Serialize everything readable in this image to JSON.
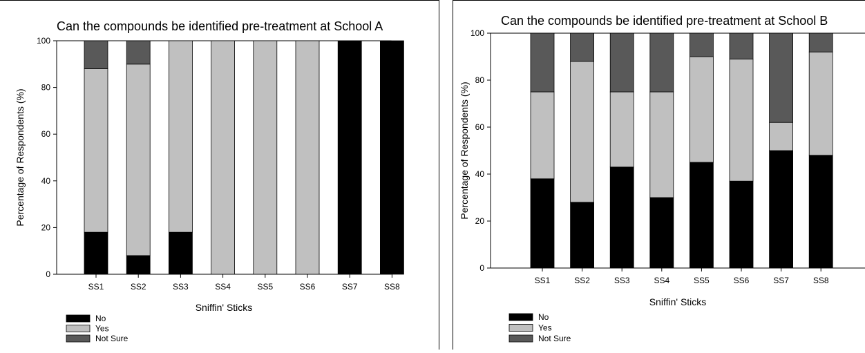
{
  "chart_data": [
    {
      "type": "bar",
      "stacked": true,
      "title": "Can the compounds be identified pre-treatment at School A",
      "xlabel": "Sniffin' Sticks",
      "ylabel": "Percentage of Respondents (%)",
      "ylim": [
        0,
        100
      ],
      "yticks": [
        0,
        20,
        40,
        60,
        80,
        100
      ],
      "categories": [
        "SS1",
        "SS2",
        "SS3",
        "SS4",
        "SS5",
        "SS6",
        "SS7",
        "SS8"
      ],
      "series": [
        {
          "name": "No",
          "values": [
            18,
            8,
            18,
            0,
            0,
            0,
            100,
            100
          ]
        },
        {
          "name": "Yes",
          "values": [
            70,
            82,
            82,
            100,
            100,
            100,
            0,
            0
          ]
        },
        {
          "name": "Not Sure",
          "values": [
            12,
            10,
            0,
            0,
            0,
            0,
            0,
            0
          ]
        }
      ],
      "grid": false,
      "legend_position": "bottom-left"
    },
    {
      "type": "bar",
      "stacked": true,
      "title": "Can the compounds be identified pre-treatment at School B",
      "xlabel": "Sniffin' Sticks",
      "ylabel": "Percentage of Respondents (%)",
      "ylim": [
        0,
        100
      ],
      "yticks": [
        0,
        20,
        40,
        60,
        80,
        100
      ],
      "categories": [
        "SS1",
        "SS2",
        "SS3",
        "SS4",
        "SS5",
        "SS6",
        "SS7",
        "SS8"
      ],
      "series": [
        {
          "name": "No",
          "values": [
            38,
            28,
            43,
            30,
            45,
            37,
            50,
            48
          ]
        },
        {
          "name": "Yes",
          "values": [
            37,
            60,
            32,
            45,
            45,
            52,
            12,
            44
          ]
        },
        {
          "name": "Not Sure",
          "values": [
            25,
            12,
            25,
            25,
            10,
            11,
            38,
            8
          ]
        }
      ],
      "grid": false,
      "legend_position": "bottom-left"
    }
  ],
  "colors": {
    "No": "#000000",
    "Yes": "#c0c0c0",
    "Not Sure": "#595959"
  }
}
